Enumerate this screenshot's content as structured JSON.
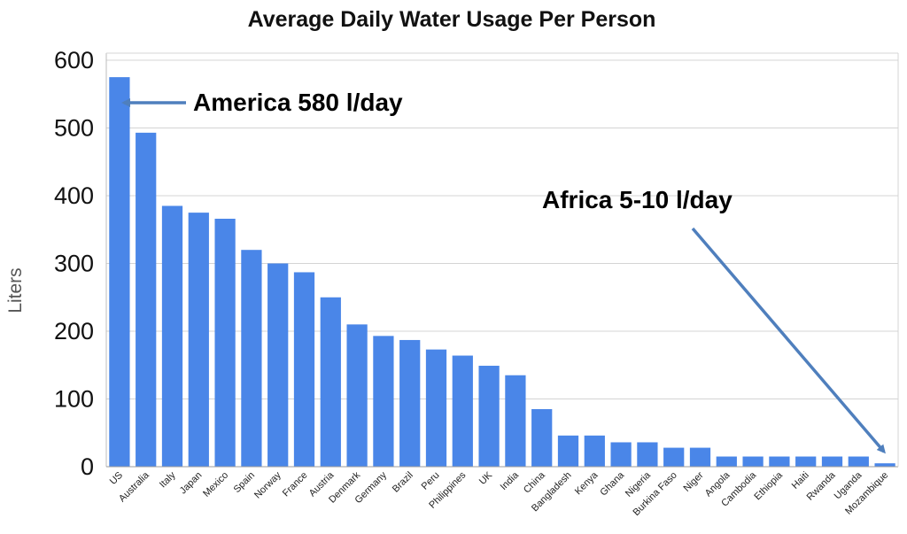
{
  "chart_data": {
    "type": "bar",
    "title": "Average Daily Water Usage Per Person",
    "xlabel": "",
    "ylabel": "Liters",
    "ylim": [
      0,
      600
    ],
    "yticks": [
      0,
      100,
      200,
      300,
      400,
      500,
      600
    ],
    "grid": true,
    "legend": "none",
    "bar_color": "#4a86e8",
    "arrow_color": "#4f7fbd",
    "categories": [
      "US",
      "Australia",
      "Italy",
      "Japan",
      "Mexico",
      "Spain",
      "Norway",
      "France",
      "Austria",
      "Denmark",
      "Germany",
      "Brazil",
      "Peru",
      "Philippines",
      "UK",
      "India",
      "China",
      "Bangladesh",
      "Kenya",
      "Ghana",
      "Nigeria",
      "Burkina Faso",
      "Niger",
      "Angola",
      "Cambodia",
      "Ethiopia",
      "Haiti",
      "Rwanda",
      "Uganda",
      "Mozambique"
    ],
    "values": [
      575,
      493,
      385,
      375,
      366,
      320,
      300,
      287,
      250,
      210,
      193,
      187,
      173,
      164,
      149,
      135,
      85,
      46,
      46,
      36,
      36,
      28,
      28,
      15,
      15,
      15,
      15,
      15,
      15,
      5
    ],
    "annotations": [
      {
        "text": "America 580 l/day",
        "category": "US"
      },
      {
        "text": "Africa 5-10 l/day",
        "category": "Mozambique"
      }
    ]
  }
}
